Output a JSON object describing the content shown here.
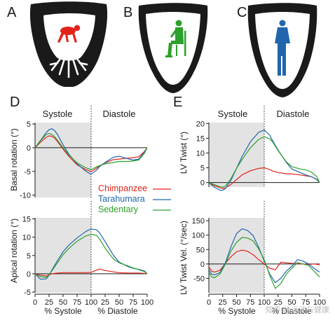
{
  "panels": {
    "A": {
      "label": "A"
    },
    "B": {
      "label": "B"
    },
    "C": {
      "label": "C"
    },
    "D": {
      "label": "D"
    },
    "E": {
      "label": "E"
    }
  },
  "phase_labels": {
    "systole": "Systole",
    "diastole": "Diastole"
  },
  "axis_titles": {
    "basal": "Basal rotation (°)",
    "apical": "Apical rotation (°)",
    "twist": "LV Twist (°)",
    "twist_vel": "LV Twist Vel. (°/sec)",
    "x_systole": "% Systole",
    "x_diastole": "% Diastole"
  },
  "x_ticks_systole": [
    "0",
    "25",
    "50",
    "75",
    "100"
  ],
  "x_ticks_diastole": [
    "0",
    "25",
    "50",
    "75",
    "100"
  ],
  "legend": [
    {
      "name": "Chimpanzee",
      "color": "#e2231a"
    },
    {
      "name": "Tarahumara",
      "color": "#2166ac"
    },
    {
      "name": "Sedentary",
      "color": "#2ca02c"
    }
  ],
  "colors": {
    "shade": "#e3e3e3",
    "heart": "#1a1a1a",
    "chimp": "#e2231a",
    "tara": "#2166ac",
    "sed": "#2ca02c"
  },
  "icons": {
    "A": "chimpanzee-icon",
    "B": "seated-human-icon",
    "C": "standing-human-icon"
  },
  "watermark": "知乎 @运动与健康",
  "chart_data": [
    {
      "type": "line",
      "id": "basal",
      "ylabel": "Basal rotation (°)",
      "ylim": [
        -10.5,
        5.3
      ],
      "yticks": [
        5,
        0,
        -5,
        -10
      ],
      "xlim": [
        0,
        200
      ],
      "x": [
        0,
        10,
        20,
        25,
        30,
        35,
        40,
        50,
        60,
        75,
        90,
        100,
        110,
        115,
        125,
        140,
        150,
        165,
        175,
        185,
        195,
        200
      ],
      "series": [
        {
          "name": "Chimpanzee",
          "color": "#e2231a",
          "values": [
            0,
            1.2,
            2.2,
            2.5,
            2.4,
            2.0,
            1.3,
            -0.3,
            -1.8,
            -3.6,
            -4.6,
            -5.0,
            -4.3,
            -3.8,
            -3.2,
            -2.5,
            -2.4,
            -2.2,
            -2.1,
            -1.9,
            -0.8,
            0
          ]
        },
        {
          "name": "Tarahumara",
          "color": "#2166ac",
          "values": [
            0,
            1.6,
            3.2,
            3.8,
            4.0,
            3.6,
            2.8,
            0.6,
            -1.3,
            -3.4,
            -4.9,
            -5.6,
            -4.7,
            -4.0,
            -3.1,
            -2.0,
            -1.8,
            -2.3,
            -2.6,
            -2.4,
            -0.9,
            0
          ]
        },
        {
          "name": "Sedentary",
          "color": "#2ca02c",
          "values": [
            0,
            1.5,
            2.8,
            3.0,
            2.8,
            2.3,
            1.6,
            0,
            -1.5,
            -3.2,
            -4.2,
            -4.6,
            -4.0,
            -3.8,
            -3.4,
            -3.1,
            -2.9,
            -2.9,
            -2.8,
            -2.6,
            -1.2,
            0
          ]
        }
      ]
    },
    {
      "type": "line",
      "id": "apical",
      "ylabel": "Apical rotation (°)",
      "ylim": [
        -5.2,
        15.3
      ],
      "yticks": [
        15,
        10,
        5,
        0,
        -5
      ],
      "xlim": [
        0,
        200
      ],
      "x": [
        0,
        10,
        20,
        25,
        30,
        40,
        50,
        60,
        75,
        90,
        100,
        110,
        115,
        125,
        140,
        150,
        165,
        175,
        185,
        195,
        200
      ],
      "series": [
        {
          "name": "Chimpanzee",
          "color": "#e2231a",
          "values": [
            0,
            -0.4,
            -0.6,
            -0.3,
            0,
            0.2,
            0.3,
            0.3,
            0.3,
            0.3,
            0.4,
            1.0,
            1.3,
            0.9,
            0.5,
            0.3,
            0.2,
            0.2,
            0.2,
            0.1,
            0
          ]
        },
        {
          "name": "Tarahumara",
          "color": "#2166ac",
          "values": [
            0,
            -1.5,
            -1.4,
            -0.4,
            1.0,
            3.6,
            6.0,
            7.8,
            9.8,
            11.5,
            12.3,
            12.0,
            11.2,
            8.8,
            5.0,
            3.2,
            2.0,
            1.5,
            1.2,
            0.8,
            0
          ]
        },
        {
          "name": "Sedentary",
          "color": "#2ca02c",
          "values": [
            0,
            -0.8,
            -1.0,
            -0.3,
            0.8,
            3.0,
            5.2,
            6.9,
            8.9,
            10.3,
            10.8,
            10.5,
            9.5,
            7.0,
            4.0,
            3.0,
            2.2,
            1.6,
            1.1,
            0.6,
            0
          ]
        }
      ]
    },
    {
      "type": "line",
      "id": "twist",
      "ylabel": "LV Twist (°)",
      "ylim": [
        -1.5,
        20.3
      ],
      "yticks": [
        20,
        15,
        10,
        5,
        0
      ],
      "xlim": [
        0,
        200
      ],
      "x": [
        0,
        10,
        20,
        25,
        30,
        40,
        50,
        60,
        75,
        90,
        100,
        110,
        115,
        125,
        140,
        150,
        165,
        175,
        185,
        195,
        200
      ],
      "series": [
        {
          "name": "Chimpanzee",
          "color": "#e2231a",
          "values": [
            0,
            -1.0,
            -1.8,
            -2.0,
            -1.8,
            -0.6,
            1.0,
            2.6,
            4.0,
            4.8,
            5.0,
            4.4,
            3.9,
            3.4,
            3.0,
            2.9,
            2.6,
            2.3,
            2.0,
            1.0,
            0
          ]
        },
        {
          "name": "Tarahumara",
          "color": "#2166ac",
          "values": [
            0,
            -1.6,
            -2.6,
            -2.6,
            -2.0,
            0.8,
            4.8,
            8.8,
            13.8,
            17.0,
            17.8,
            16.0,
            14.2,
            11.0,
            6.8,
            4.6,
            3.4,
            2.6,
            2.0,
            1.1,
            0
          ]
        },
        {
          "name": "Sedentary",
          "color": "#2ca02c",
          "values": [
            0,
            -0.7,
            -1.4,
            -1.6,
            -1.2,
            1.4,
            4.8,
            7.8,
            11.8,
            14.6,
            15.5,
            14.8,
            13.8,
            10.8,
            7.0,
            5.4,
            4.6,
            4.3,
            3.6,
            2.0,
            0
          ]
        }
      ]
    },
    {
      "type": "line",
      "id": "twist_vel",
      "ylabel": "LV Twist Vel. (°/sec)",
      "ylim": [
        -100,
        160
      ],
      "yticks": [
        150,
        100,
        50,
        0,
        -50
      ],
      "xlim": [
        0,
        200
      ],
      "x": [
        0,
        5,
        10,
        20,
        30,
        40,
        50,
        60,
        70,
        80,
        90,
        100,
        110,
        120,
        130,
        140,
        150,
        160,
        170,
        180,
        190,
        200
      ],
      "series": [
        {
          "name": "Chimpanzee",
          "color": "#e2231a",
          "values": [
            -10,
            -25,
            -28,
            -22,
            2,
            25,
            42,
            48,
            44,
            32,
            15,
            0,
            -15,
            -20,
            6,
            4,
            2,
            1,
            0,
            -2,
            0,
            -3
          ]
        },
        {
          "name": "Tarahumara",
          "color": "#2166ac",
          "values": [
            -20,
            -35,
            -38,
            -30,
            5,
            60,
            105,
            122,
            116,
            98,
            58,
            10,
            -35,
            -65,
            -50,
            -25,
            -8,
            15,
            10,
            0,
            -15,
            -28
          ]
        },
        {
          "name": "Sedentary",
          "color": "#2ca02c",
          "values": [
            -28,
            -45,
            -48,
            -35,
            0,
            45,
            75,
            92,
            90,
            80,
            52,
            15,
            -40,
            -85,
            -68,
            -35,
            -15,
            5,
            0,
            -5,
            -25,
            -45
          ]
        }
      ]
    }
  ]
}
